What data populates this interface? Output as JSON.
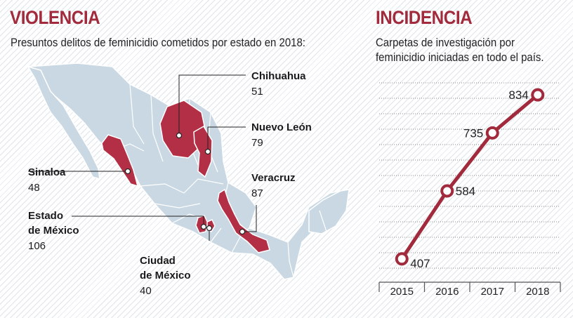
{
  "left": {
    "title": "VIOLENCIA",
    "subtitle": "Presuntos delitos de feminicidio cometidos por estado en 2018:",
    "states": [
      {
        "name_lines": [
          "Chihuahua"
        ],
        "value": "51"
      },
      {
        "name_lines": [
          "Nuevo León"
        ],
        "value": "79"
      },
      {
        "name_lines": [
          "Sinaloa"
        ],
        "value": "48"
      },
      {
        "name_lines": [
          "Veracruz"
        ],
        "value": "87"
      },
      {
        "name_lines": [
          "Estado",
          "de México"
        ],
        "value": "106"
      },
      {
        "name_lines": [
          "Ciudad",
          "de México"
        ],
        "value": "40"
      }
    ]
  },
  "right": {
    "title": "INCIDENCIA",
    "subtitle_lines": [
      "Carpetas de investigación por",
      "feminicidio iniciadas en todo el país."
    ]
  },
  "colors": {
    "accent": "#a12a3c",
    "highlight_state": "#b22f45",
    "map_base": "#c9d8e3",
    "border": "#ffffff"
  },
  "chart_data": {
    "type": "line",
    "categories": [
      "2015",
      "2016",
      "2017",
      "2018"
    ],
    "series": [
      {
        "values": [
          407,
          584,
          735,
          834
        ]
      }
    ],
    "ylim": [
      350,
      880
    ],
    "grid": true
  }
}
